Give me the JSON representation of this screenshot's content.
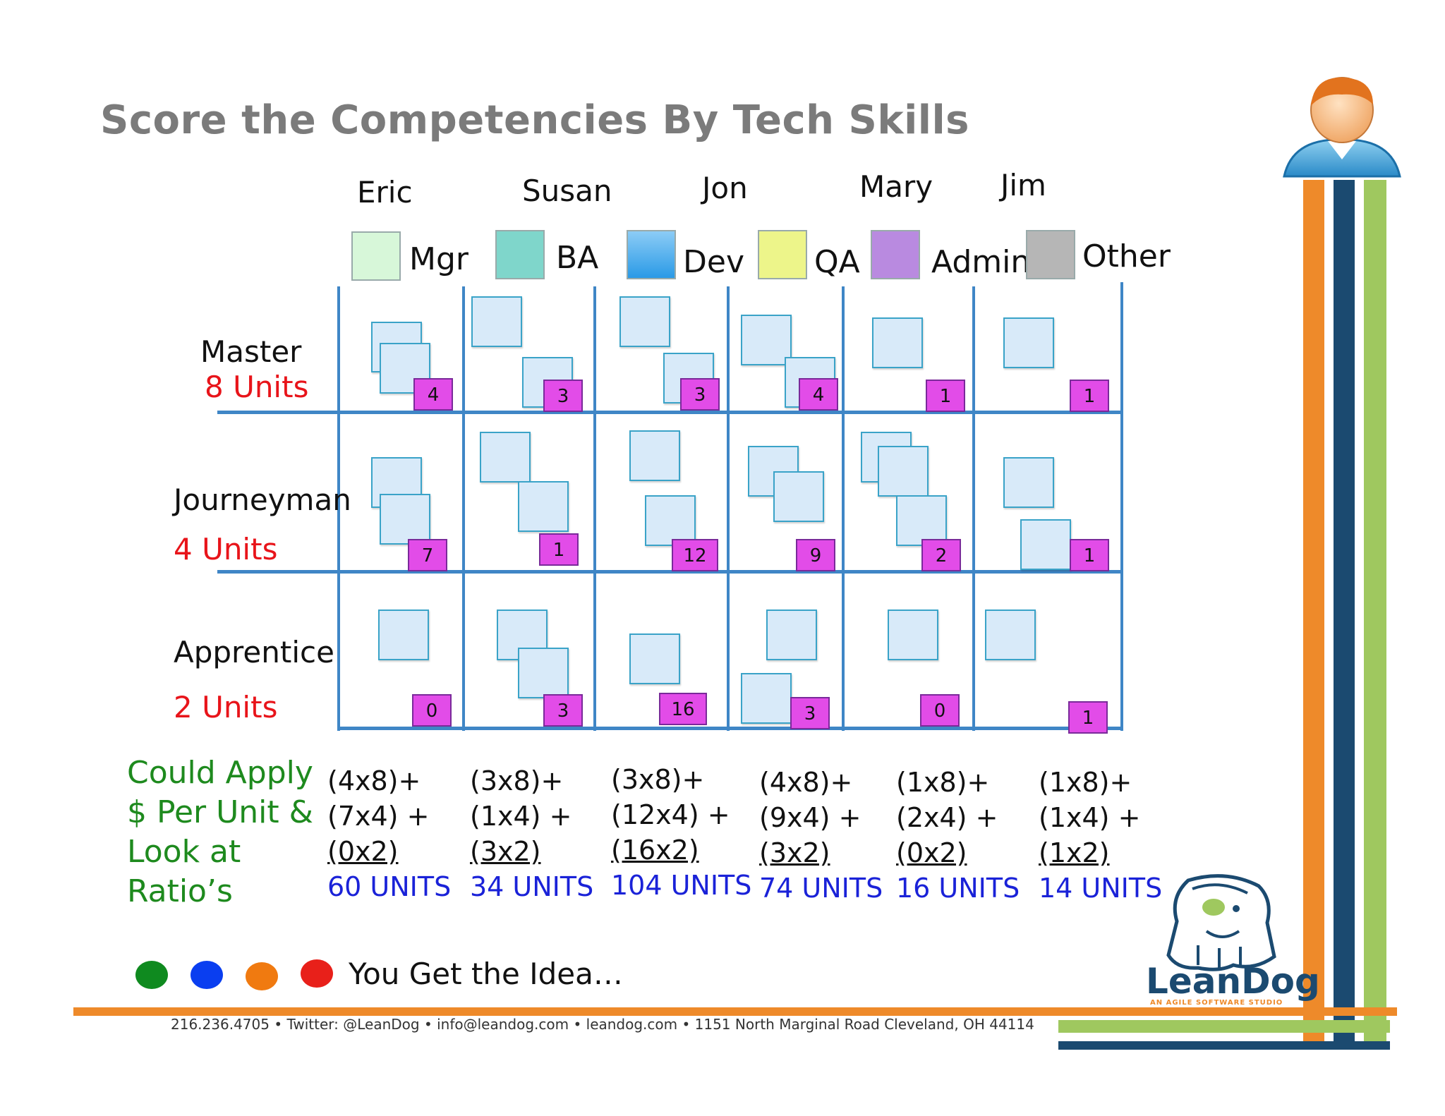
{
  "title": "Score the Competencies By Tech Skills",
  "people": [
    "Eric",
    "Susan",
    "Jon",
    "Mary",
    "Jim"
  ],
  "legend": [
    {
      "label": "Mgr",
      "color": "#d7f7d9"
    },
    {
      "label": "BA",
      "color": "#7fd6cb"
    },
    {
      "label": "Dev",
      "color": "#3aa6ea"
    },
    {
      "label": "QA",
      "color": "#edf58a"
    },
    {
      "label": "Admin",
      "color": "#b98ae0"
    },
    {
      "label": "Other",
      "color": "#b6b6b6"
    }
  ],
  "levels": [
    {
      "name": "Master",
      "units": "8 Units"
    },
    {
      "name": "Journeyman",
      "units": "4 Units"
    },
    {
      "name": "Apprentice",
      "units": "2 Units"
    }
  ],
  "counts": {
    "master": [
      "4",
      "3",
      "3",
      "4",
      "1",
      "1"
    ],
    "journeyman": [
      "7",
      "1",
      "12",
      "9",
      "2",
      "1"
    ],
    "apprentice": [
      "0",
      "3",
      "16",
      "3",
      "0",
      "1"
    ]
  },
  "apply_text": [
    "Could Apply",
    "$ Per Unit &",
    "Look at",
    "Ratio’s"
  ],
  "calcs": [
    {
      "l1": "(4x8)+",
      "l2": "(7x4) +",
      "l3": "(0x2)",
      "total": "60 UNITS"
    },
    {
      "l1": "(3x8)+",
      "l2": "(1x4) +",
      "l3": "(3x2)",
      "total": "34 UNITS"
    },
    {
      "l1": "(3x8)+",
      "l2": "(12x4) +",
      "l3": "(16x2)",
      "total": "104 UNITS"
    },
    {
      "l1": "(4x8)+",
      "l2": "(9x4) +",
      "l3": "(3x2)",
      "total": "74 UNITS"
    },
    {
      "l1": "(1x8)+",
      "l2": "(2x4) +",
      "l3": "(0x2)",
      "total": "16 UNITS"
    },
    {
      "l1": "(1x8)+",
      "l2": "(1x4) +",
      "l3": "(1x2)",
      "total": "14 UNITS"
    }
  ],
  "dots": [
    "#0f8a1f",
    "#0a3ef0",
    "#f07a10",
    "#e8201a"
  ],
  "idea": "You Get the Idea…",
  "logo": {
    "name": "LeanDog",
    "tagline": "AN AGILE SOFTWARE STUDIO"
  },
  "footer": "216.236.4705 • Twitter: @LeanDog • info@leandog.com • leandog.com • 1151 North Marginal Road Cleveland, OH 44114",
  "colors": {
    "orange": "#ee8a2a",
    "navy": "#1b4a70",
    "green": "#9fc85f",
    "grid": "#3f86c6"
  }
}
